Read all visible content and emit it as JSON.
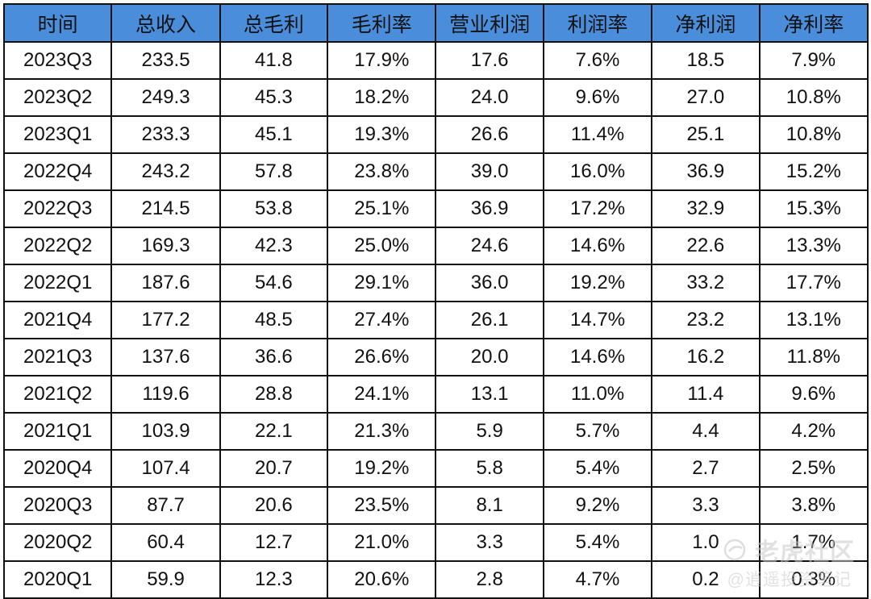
{
  "chart_data": {
    "type": "table",
    "columns": [
      "时间",
      "总收入",
      "总毛利",
      "毛利率",
      "营业利润",
      "利润率",
      "净利润",
      "净利率"
    ],
    "rows": [
      [
        "2023Q3",
        "233.5",
        "41.8",
        "17.9%",
        "17.6",
        "7.6%",
        "18.5",
        "7.9%"
      ],
      [
        "2023Q2",
        "249.3",
        "45.3",
        "18.2%",
        "24.0",
        "9.6%",
        "27.0",
        "10.8%"
      ],
      [
        "2023Q1",
        "233.3",
        "45.1",
        "19.3%",
        "26.6",
        "11.4%",
        "25.1",
        "10.8%"
      ],
      [
        "2022Q4",
        "243.2",
        "57.8",
        "23.8%",
        "39.0",
        "16.0%",
        "36.9",
        "15.2%"
      ],
      [
        "2022Q3",
        "214.5",
        "53.8",
        "25.1%",
        "36.9",
        "17.2%",
        "32.9",
        "15.3%"
      ],
      [
        "2022Q2",
        "169.3",
        "42.3",
        "25.0%",
        "24.6",
        "14.6%",
        "22.6",
        "13.3%"
      ],
      [
        "2022Q1",
        "187.6",
        "54.6",
        "29.1%",
        "36.0",
        "19.2%",
        "33.2",
        "17.7%"
      ],
      [
        "2021Q4",
        "177.2",
        "48.5",
        "27.4%",
        "26.1",
        "14.7%",
        "23.2",
        "13.1%"
      ],
      [
        "2021Q3",
        "137.6",
        "36.6",
        "26.6%",
        "20.0",
        "14.6%",
        "16.2",
        "11.8%"
      ],
      [
        "2021Q2",
        "119.6",
        "28.8",
        "24.1%",
        "13.1",
        "11.0%",
        "11.4",
        "9.6%"
      ],
      [
        "2021Q1",
        "103.9",
        "22.1",
        "21.3%",
        "5.9",
        "5.7%",
        "4.4",
        "4.2%"
      ],
      [
        "2020Q4",
        "107.4",
        "20.7",
        "19.2%",
        "5.8",
        "5.4%",
        "2.7",
        "2.5%"
      ],
      [
        "2020Q3",
        "87.7",
        "20.6",
        "23.5%",
        "8.1",
        "9.2%",
        "3.3",
        "3.8%"
      ],
      [
        "2020Q2",
        "60.4",
        "12.7",
        "21.0%",
        "3.3",
        "5.4%",
        "1.0",
        "1.7%"
      ],
      [
        "2020Q1",
        "59.9",
        "12.3",
        "20.6%",
        "2.8",
        "4.7%",
        "0.2",
        "0.3%"
      ]
    ],
    "header_color": "#4a8edb",
    "border_color": "#111111"
  },
  "watermark": {
    "brand": "老虎社区",
    "author": "@逍遥投资笔记"
  }
}
